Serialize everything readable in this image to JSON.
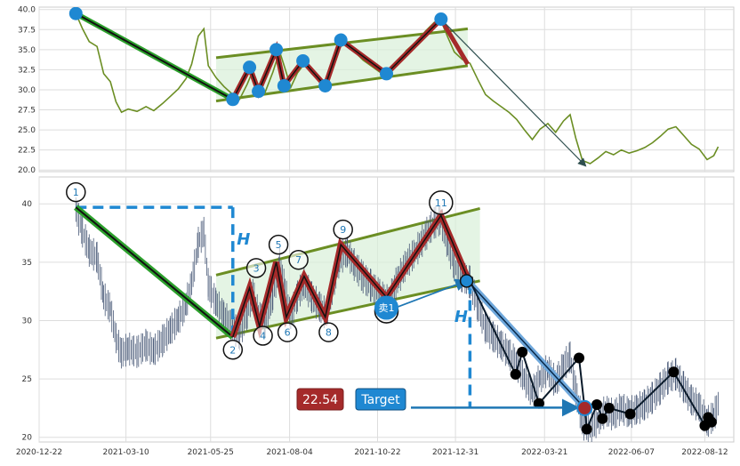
{
  "chart_data": [
    {
      "type": "line",
      "panel": "top",
      "title": "",
      "xlabel": "",
      "ylabel": "",
      "ylim": [
        19.8,
        40.3
      ],
      "xlim": [
        "2020-12-22",
        "2022-09-07"
      ],
      "grid": true,
      "yticks": [
        20.0,
        22.5,
        25.0,
        27.5,
        30.0,
        32.5,
        35.0,
        37.5,
        40.0
      ],
      "price_color": "#6b8e23",
      "price": [
        [
          "2021-01-24",
          39.5
        ],
        [
          "2021-01-30",
          37.6
        ],
        [
          "2021-02-05",
          36.0
        ],
        [
          "2021-02-12",
          35.4
        ],
        [
          "2021-02-18",
          32.0
        ],
        [
          "2021-02-24",
          31.0
        ],
        [
          "2021-03-01",
          28.5
        ],
        [
          "2021-03-06",
          27.2
        ],
        [
          "2021-03-12",
          27.6
        ],
        [
          "2021-03-20",
          27.3
        ],
        [
          "2021-03-28",
          27.9
        ],
        [
          "2021-04-04",
          27.4
        ],
        [
          "2021-04-12",
          28.3
        ],
        [
          "2021-04-19",
          29.2
        ],
        [
          "2021-04-26",
          30.1
        ],
        [
          "2021-05-03",
          31.4
        ],
        [
          "2021-05-08",
          33.2
        ],
        [
          "2021-05-14",
          36.7
        ],
        [
          "2021-05-19",
          37.6
        ],
        [
          "2021-05-23",
          33.0
        ],
        [
          "2021-05-30",
          31.5
        ],
        [
          "2021-06-06",
          30.4
        ],
        [
          "2021-06-14",
          29.4
        ],
        [
          "2021-06-20",
          28.8
        ],
        [
          "2021-06-27",
          30.7
        ],
        [
          "2021-07-02",
          32.4
        ],
        [
          "2021-07-07",
          30.5
        ],
        [
          "2021-07-13",
          29.7
        ],
        [
          "2021-07-20",
          32.2
        ],
        [
          "2021-07-26",
          34.8
        ],
        [
          "2021-07-31",
          32.6
        ],
        [
          "2021-08-05",
          30.3
        ],
        [
          "2021-08-11",
          32.1
        ],
        [
          "2021-08-17",
          33.2
        ],
        [
          "2021-08-24",
          32.0
        ],
        [
          "2021-08-31",
          31.2
        ],
        [
          "2021-09-06",
          30.5
        ],
        [
          "2021-09-12",
          33.0
        ],
        [
          "2021-09-18",
          35.3
        ],
        [
          "2021-09-25",
          35.9
        ],
        [
          "2021-10-01",
          34.8
        ],
        [
          "2021-10-09",
          33.7
        ],
        [
          "2021-10-16",
          33.0
        ],
        [
          "2021-10-24",
          32.2
        ],
        [
          "2021-11-01",
          31.6
        ],
        [
          "2021-11-09",
          33.5
        ],
        [
          "2021-11-17",
          34.9
        ],
        [
          "2021-11-26",
          36.0
        ],
        [
          "2021-12-04",
          37.3
        ],
        [
          "2021-12-12",
          38.4
        ],
        [
          "2021-12-18",
          38.6
        ],
        [
          "2021-12-24",
          36.6
        ],
        [
          "2021-12-30",
          34.7
        ],
        [
          "2022-01-06",
          33.8
        ],
        [
          "2022-01-13",
          33.3
        ],
        [
          "2022-01-20",
          31.3
        ],
        [
          "2022-01-27",
          29.4
        ],
        [
          "2022-02-03",
          28.6
        ],
        [
          "2022-02-10",
          27.9
        ],
        [
          "2022-02-17",
          27.2
        ],
        [
          "2022-02-24",
          26.3
        ],
        [
          "2022-03-03",
          25.0
        ],
        [
          "2022-03-10",
          23.8
        ],
        [
          "2022-03-17",
          25.1
        ],
        [
          "2022-03-24",
          25.8
        ],
        [
          "2022-03-31",
          24.7
        ],
        [
          "2022-04-07",
          26.1
        ],
        [
          "2022-04-13",
          26.9
        ],
        [
          "2022-04-18",
          24.0
        ],
        [
          "2022-04-24",
          21.2
        ],
        [
          "2022-05-01",
          20.8
        ],
        [
          "2022-05-08",
          21.5
        ],
        [
          "2022-05-15",
          22.3
        ],
        [
          "2022-05-22",
          21.9
        ],
        [
          "2022-05-29",
          22.5
        ],
        [
          "2022-06-05",
          22.1
        ],
        [
          "2022-06-12",
          22.4
        ],
        [
          "2022-06-19",
          22.8
        ],
        [
          "2022-06-26",
          23.4
        ],
        [
          "2022-07-03",
          24.2
        ],
        [
          "2022-07-10",
          25.1
        ],
        [
          "2022-07-17",
          25.4
        ],
        [
          "2022-07-24",
          24.3
        ],
        [
          "2022-07-31",
          23.2
        ],
        [
          "2022-08-07",
          22.6
        ],
        [
          "2022-08-14",
          21.3
        ],
        [
          "2022-08-20",
          21.8
        ],
        [
          "2022-08-24",
          22.9
        ]
      ],
      "pattern_points": [
        [
          "2021-01-24",
          39.5
        ],
        [
          "2021-06-14",
          28.8
        ],
        [
          "2021-06-29",
          32.8
        ],
        [
          "2021-07-07",
          29.8
        ],
        [
          "2021-07-23",
          35.0
        ],
        [
          "2021-07-30",
          30.5
        ],
        [
          "2021-08-16",
          33.6
        ],
        [
          "2021-09-05",
          30.5
        ],
        [
          "2021-09-19",
          36.2
        ],
        [
          "2021-10-30",
          32.0
        ],
        [
          "2021-12-18",
          38.8
        ]
      ],
      "pattern_tail": [
        [
          "2021-12-18",
          38.8
        ],
        [
          "2022-01-11",
          33.2
        ]
      ],
      "channel_upper": [
        [
          "2021-05-30",
          34.0
        ],
        [
          "2022-01-11",
          37.6
        ]
      ],
      "channel_lower": [
        [
          "2021-05-30",
          28.6
        ],
        [
          "2022-01-11",
          33.0
        ]
      ],
      "projection": [
        [
          "2021-12-18",
          38.8
        ],
        [
          "2022-04-27",
          20.5
        ]
      ]
    },
    {
      "type": "line",
      "panel": "bottom",
      "title": "",
      "xlabel": "",
      "ylabel": "",
      "ylim": [
        19.6,
        42.3
      ],
      "xlim": [
        "2020-12-22",
        "2022-09-07"
      ],
      "grid": true,
      "yticks": [
        20,
        25,
        30,
        35,
        40
      ],
      "xticks": [
        "2020-12-22",
        "2021-03-10",
        "2021-05-25",
        "2021-08-04",
        "2021-10-22",
        "2021-12-31",
        "2022-03-21",
        "2022-06-07",
        "2022-08-12"
      ],
      "labels": {
        "circle_1": "1",
        "circle_2": "2",
        "circle_3": "3",
        "circle_4": "4",
        "circle_5": "5",
        "circle_6": "6",
        "circle_7": "7",
        "circle_8": "8",
        "circle_9": "9",
        "circle_11": "11",
        "sell_marker": "卖1",
        "height_marker_left": "H",
        "height_marker_right": "H",
        "target_value": "22.54",
        "target_label": "Target"
      },
      "pattern_points": [
        [
          "2021-01-24",
          39.7
        ],
        [
          "2021-06-14",
          28.6
        ],
        [
          "2021-06-29",
          32.8
        ],
        [
          "2021-07-08",
          29.5
        ],
        [
          "2021-07-23",
          35.0
        ],
        [
          "2021-08-01",
          30.3
        ],
        [
          "2021-08-17",
          33.8
        ],
        [
          "2021-09-05",
          30.3
        ],
        [
          "2021-09-19",
          36.5
        ],
        [
          "2021-10-30",
          32.0
        ],
        [
          "2021-12-18",
          39.0
        ],
        [
          "2022-01-13",
          33.2
        ]
      ],
      "circle_points": [
        [
          "2021-01-24",
          41.0,
          "1"
        ],
        [
          "2021-06-14",
          27.5,
          "2"
        ],
        [
          "2021-07-05",
          34.5,
          "3"
        ],
        [
          "2021-07-11",
          28.7,
          "4"
        ],
        [
          "2021-07-25",
          36.5,
          "5"
        ],
        [
          "2021-08-02",
          29.0,
          "6"
        ],
        [
          "2021-08-12",
          35.2,
          "7"
        ],
        [
          "2021-09-08",
          29.0,
          "8"
        ],
        [
          "2021-09-21",
          37.8,
          "9"
        ],
        [
          "2021-12-18",
          40.1,
          "11"
        ]
      ],
      "channel_upper": [
        [
          "2021-05-30",
          33.9
        ],
        [
          "2022-01-22",
          39.6
        ]
      ],
      "channel_lower": [
        [
          "2021-05-30",
          28.5
        ],
        [
          "2022-01-22",
          33.4
        ]
      ],
      "sell_signal": [
        "2021-10-30",
        31.1
      ],
      "sell_arrow": [
        [
          "2021-10-30",
          31.1
        ],
        [
          "2022-01-10",
          33.4
        ]
      ],
      "target_price": 22.54,
      "target_projection": [
        [
          "2022-01-13",
          33.2
        ],
        [
          "2022-04-26",
          22.5
        ]
      ],
      "height_ref": {
        "top": 39.7,
        "bottom": 28.6,
        "left_date": "2021-01-24",
        "right_date": "2021-06-14",
        "projection_date": "2022-01-13"
      },
      "post_breakout_points": [
        [
          "2022-01-13",
          33.4
        ],
        [
          "2022-02-23",
          25.4
        ],
        [
          "2022-03-01",
          27.3
        ],
        [
          "2022-03-16",
          22.9
        ],
        [
          "2022-04-21",
          26.8
        ],
        [
          "2022-04-26",
          22.5
        ],
        [
          "2022-04-28",
          20.7
        ],
        [
          "2022-05-07",
          22.8
        ],
        [
          "2022-05-12",
          21.6
        ],
        [
          "2022-05-18",
          22.5
        ],
        [
          "2022-06-06",
          22.0
        ],
        [
          "2022-07-15",
          25.6
        ],
        [
          "2022-08-12",
          21.0
        ],
        [
          "2022-08-15",
          21.7
        ],
        [
          "2022-08-18",
          21.3
        ]
      ]
    }
  ]
}
